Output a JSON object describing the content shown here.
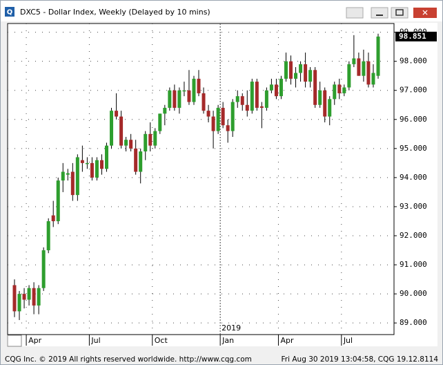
{
  "window_title": "DXC5 - Dollar Index, Weekly (Delayed by 10 mins)",
  "footer_left": "CQG Inc. © 2019 All rights reserved worldwide. http://www.cqg.com",
  "footer_right": "Fri Aug 30 2019 13:04:58, CQG 19.12.8114",
  "chart_data": {
    "type": "candlestick",
    "up_color": "#2e9e2e",
    "down_color": "#a52a2a",
    "categories": [
      null,
      null,
      null,
      "Apr",
      null,
      null,
      null,
      null,
      null,
      null,
      null,
      null,
      null,
      null,
      null,
      null,
      "Jul",
      null,
      null,
      null,
      null,
      null,
      null,
      null,
      null,
      null,
      null,
      null,
      null,
      "Oct",
      null,
      null,
      null,
      null,
      null,
      null,
      null,
      null,
      null,
      null,
      null,
      null,
      null,
      "Jan",
      null,
      null,
      null,
      null,
      null,
      null,
      null,
      null,
      null,
      null,
      null,
      "Apr",
      null,
      null,
      null,
      null,
      null,
      null,
      null,
      null,
      null,
      null,
      null,
      null,
      "Jul",
      null,
      null,
      null,
      null,
      null,
      null,
      null
    ],
    "year_label": "2019",
    "open": [
      90.3,
      89.4,
      90.0,
      89.8,
      90.2,
      89.6,
      90.2,
      91.5,
      92.7,
      92.5,
      93.9,
      94.1,
      94.2,
      93.4,
      94.6,
      94.5,
      94.5,
      94.0,
      94.6,
      94.3,
      95.1,
      96.3,
      96.1,
      95.1,
      95.3,
      95.0,
      94.2,
      94.9,
      95.5,
      95.1,
      95.6,
      96.2,
      96.4,
      97.0,
      96.4,
      97.0,
      97.0,
      96.6,
      97.4,
      96.9,
      96.3,
      96.1,
      95.6,
      96.4,
      95.8,
      95.6,
      96.6,
      96.8,
      96.5,
      96.3,
      97.3,
      96.45,
      96.4,
      97.0,
      97.2,
      96.8,
      97.4,
      98.0,
      97.4,
      97.6,
      97.9,
      97.3,
      97.7,
      96.5,
      97.0,
      96.1,
      96.7,
      97.2,
      96.9,
      97.1,
      97.9,
      98.1,
      97.5,
      98.0,
      97.2,
      97.5
    ],
    "high": [
      90.5,
      90.1,
      90.2,
      90.3,
      90.4,
      90.3,
      91.6,
      92.6,
      93.2,
      94.0,
      94.5,
      94.3,
      94.5,
      94.8,
      95.1,
      94.7,
      94.7,
      94.7,
      94.8,
      95.2,
      96.4,
      96.9,
      96.3,
      95.4,
      95.5,
      95.3,
      95.0,
      95.6,
      95.9,
      95.7,
      96.2,
      96.5,
      97.1,
      97.2,
      97.1,
      97.3,
      97.7,
      97.5,
      97.7,
      97.1,
      96.5,
      96.3,
      96.5,
      96.6,
      96.0,
      96.7,
      97.0,
      96.9,
      97.0,
      97.4,
      97.4,
      96.6,
      97.1,
      97.4,
      97.4,
      97.5,
      98.3,
      98.2,
      97.8,
      98.0,
      98.3,
      97.8,
      97.8,
      97.3,
      97.1,
      96.8,
      97.3,
      97.4,
      97.2,
      98.0,
      98.9,
      98.3,
      98.4,
      98.3,
      97.9,
      98.95
    ],
    "low": [
      89.2,
      89.1,
      89.5,
      89.6,
      89.3,
      89.3,
      90.1,
      91.4,
      92.3,
      92.4,
      93.5,
      93.9,
      93.2,
      93.2,
      94.2,
      94.3,
      93.9,
      93.9,
      94.1,
      94.2,
      95.0,
      96.0,
      95.0,
      94.9,
      94.9,
      94.1,
      93.8,
      94.6,
      94.9,
      95.0,
      95.5,
      95.8,
      96.3,
      96.3,
      96.2,
      96.8,
      96.5,
      96.5,
      96.8,
      96.2,
      95.9,
      95.0,
      95.5,
      95.7,
      95.2,
      95.4,
      96.4,
      96.3,
      96.1,
      96.2,
      96.3,
      95.7,
      96.3,
      96.9,
      96.7,
      96.7,
      97.3,
      97.2,
      97.1,
      97.3,
      97.1,
      97.1,
      96.4,
      96.4,
      95.9,
      95.8,
      96.5,
      96.7,
      96.8,
      97.0,
      97.8,
      97.5,
      97.3,
      97.1,
      97.1,
      97.4
    ],
    "close": [
      89.4,
      90.0,
      89.8,
      90.2,
      89.6,
      90.2,
      91.5,
      92.5,
      92.5,
      93.9,
      94.2,
      94.15,
      93.4,
      94.7,
      94.5,
      94.5,
      94.0,
      94.6,
      94.3,
      95.1,
      96.3,
      96.1,
      95.1,
      95.3,
      95.0,
      94.2,
      94.9,
      95.5,
      95.1,
      95.6,
      96.2,
      96.4,
      97.0,
      96.4,
      97.0,
      97.0,
      96.6,
      97.4,
      96.9,
      96.3,
      96.1,
      95.6,
      96.4,
      95.8,
      95.6,
      96.6,
      96.8,
      96.5,
      96.3,
      97.3,
      96.4,
      96.4,
      97.0,
      97.2,
      96.8,
      97.4,
      98.0,
      97.4,
      97.6,
      97.9,
      97.3,
      97.7,
      96.5,
      97.0,
      96.1,
      96.7,
      97.2,
      96.9,
      97.1,
      97.9,
      98.1,
      97.5,
      98.0,
      97.2,
      97.6,
      98.851
    ],
    "ylim": [
      88.6,
      99.3
    ],
    "yticks": [
      {
        "value": 89,
        "label": "89.000"
      },
      {
        "value": 90,
        "label": "90.000"
      },
      {
        "value": 91,
        "label": "91.000"
      },
      {
        "value": 92,
        "label": "92.000"
      },
      {
        "value": 93,
        "label": "93.000"
      },
      {
        "value": 94,
        "label": "94.000"
      },
      {
        "value": 95,
        "label": "95.000"
      },
      {
        "value": 96,
        "label": "96.000"
      },
      {
        "value": 97,
        "label": "97.000"
      },
      {
        "value": 98,
        "label": "98.000"
      },
      {
        "value": 99,
        "label": "99.000"
      }
    ],
    "grid": true
  }
}
